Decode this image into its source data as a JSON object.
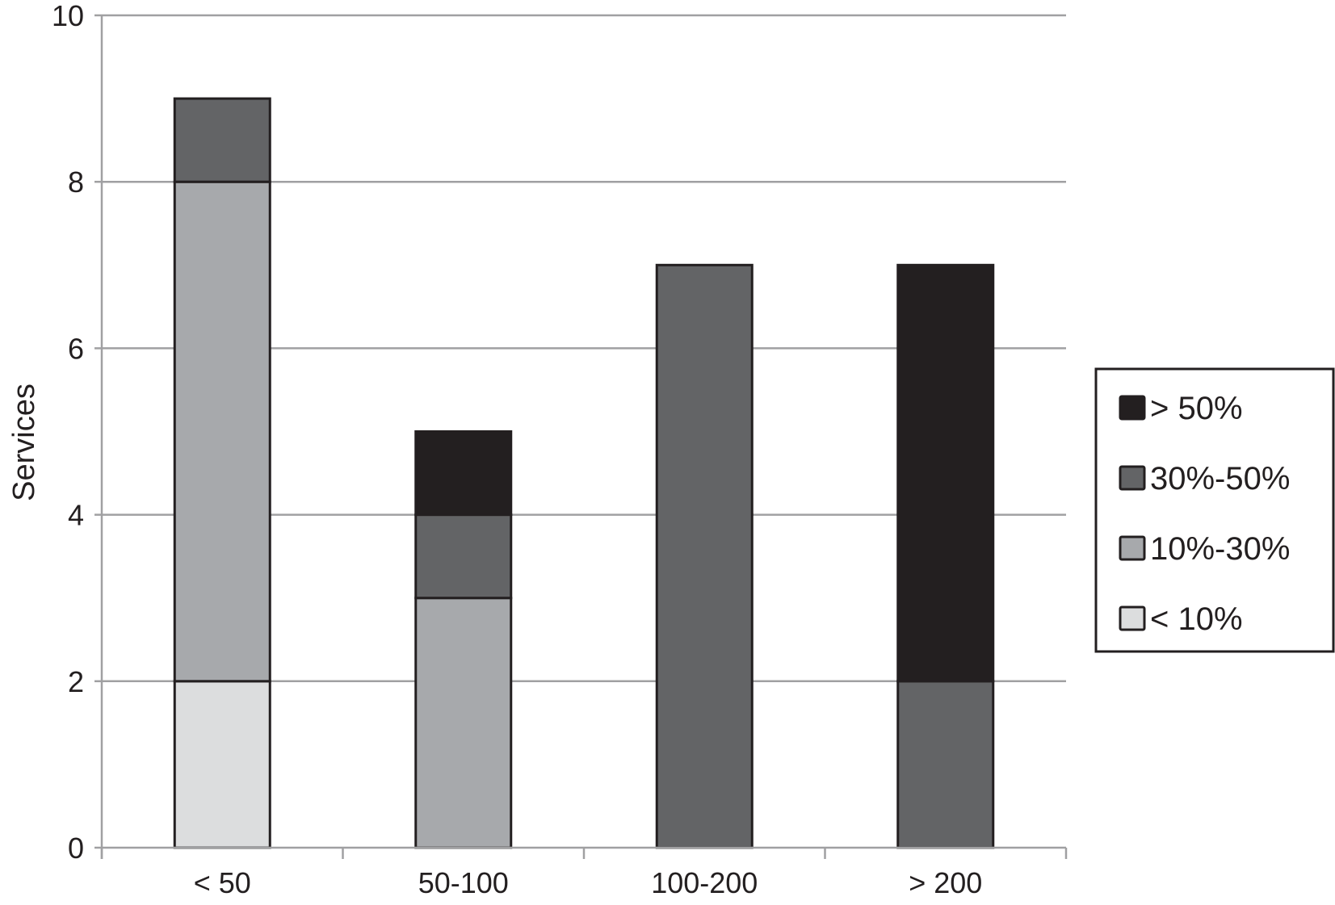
{
  "chart_data": {
    "type": "bar",
    "stacked": true,
    "title": "",
    "xlabel": "",
    "ylabel": "Services",
    "ylim": [
      0,
      10
    ],
    "yticks": [
      0,
      2,
      4,
      6,
      8,
      10
    ],
    "grid": true,
    "legend_position": "right",
    "categories": [
      "< 50",
      "50-100",
      "100-200",
      "> 200"
    ],
    "series": [
      {
        "name": "< 10%",
        "color": "#dcddde",
        "values": [
          2,
          0,
          0,
          0
        ]
      },
      {
        "name": "10%-30%",
        "color": "#a7a9ac",
        "values": [
          6,
          3,
          0,
          0
        ]
      },
      {
        "name": "30%-50%",
        "color": "#636466",
        "values": [
          1,
          1,
          7,
          2
        ]
      },
      {
        "name": "> 50%",
        "color": "#231f20",
        "values": [
          0,
          1,
          0,
          5
        ]
      }
    ],
    "legend_order": [
      "> 50%",
      "30%-50%",
      "10%-30%",
      "< 10%"
    ]
  }
}
